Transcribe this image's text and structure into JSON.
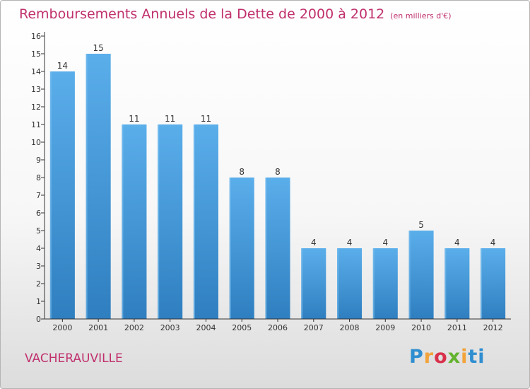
{
  "header": {
    "title": "Remboursements Annuels de la Dette de 2000 à 2012",
    "unit": "(en milliers d'€)"
  },
  "footer": {
    "city": "VACHERAUVILLE",
    "brand": [
      "P",
      "r",
      "o",
      "x",
      "i",
      "ti"
    ]
  },
  "colors": {
    "title": "#c0306d",
    "bar_light": "#5aaeea",
    "bar_dark": "#2f7fc0",
    "axis": "#333333"
  },
  "chart_data": {
    "type": "bar",
    "title": "Remboursements Annuels de la Dette de 2000 à 2012",
    "xlabel": "",
    "ylabel": "",
    "categories": [
      "2000",
      "2001",
      "2002",
      "2003",
      "2004",
      "2005",
      "2006",
      "2007",
      "2008",
      "2009",
      "2010",
      "2011",
      "2012"
    ],
    "values": [
      14,
      15,
      11,
      11,
      11,
      8,
      8,
      4,
      4,
      4,
      5,
      4,
      4
    ],
    "ylim": [
      0,
      16
    ],
    "yticks": [
      0,
      1,
      2,
      3,
      4,
      5,
      6,
      7,
      8,
      9,
      10,
      11,
      12,
      13,
      14,
      15,
      16
    ],
    "grid": false,
    "legend": "none"
  }
}
